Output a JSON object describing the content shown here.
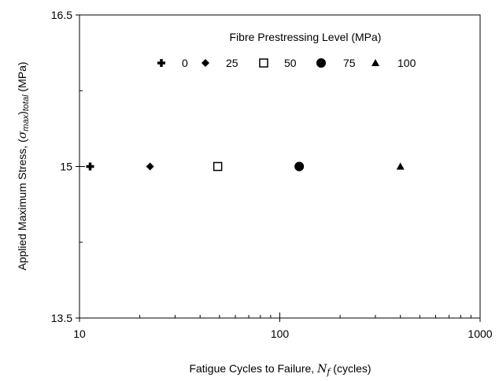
{
  "chart_data": {
    "type": "scatter",
    "x_scale": "log",
    "xlim": [
      10,
      1000
    ],
    "ylim": [
      13.5,
      16.5
    ],
    "xticks": [
      10,
      100,
      1000
    ],
    "xtick_labels": [
      "10",
      "100",
      "1000"
    ],
    "yticks": [
      13.5,
      15,
      16.5
    ],
    "ytick_labels": [
      "13.5",
      "15",
      "16.5"
    ],
    "xlabel": {
      "prefix": "Fatigue Cycles to Failure, ",
      "symbol": "N",
      "subscript": "f",
      "suffix": " (cycles)"
    },
    "ylabel": {
      "prefix": "Applied Maximum Stress, (",
      "symbol": "σ",
      "subscript": "max",
      "post_paren": ")",
      "subscript2": "total",
      "suffix": " (MPa)"
    },
    "grid": false,
    "legend": {
      "title": "Fibre Prestressing Level (MPa)",
      "placement": "top-center"
    },
    "series": [
      {
        "name": "0",
        "marker": "plus",
        "points": [
          {
            "x": 11.3,
            "y": 15
          }
        ]
      },
      {
        "name": "25",
        "marker": "diamond",
        "points": [
          {
            "x": 22.5,
            "y": 15
          }
        ]
      },
      {
        "name": "50",
        "marker": "square-open",
        "points": [
          {
            "x": 49,
            "y": 15
          }
        ]
      },
      {
        "name": "75",
        "marker": "circle",
        "points": [
          {
            "x": 125,
            "y": 15
          }
        ]
      },
      {
        "name": "100",
        "marker": "triangle",
        "points": [
          {
            "x": 400,
            "y": 15
          }
        ]
      }
    ],
    "colors": {
      "marker": "#000000",
      "axis": "#000000",
      "background": "#ffffff"
    }
  }
}
